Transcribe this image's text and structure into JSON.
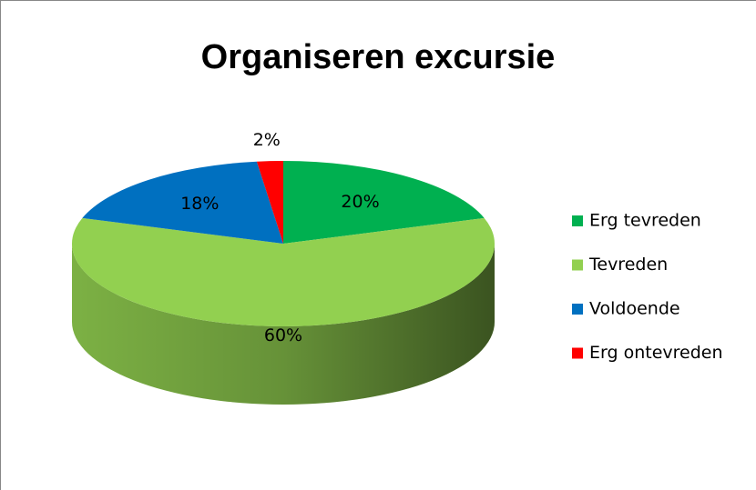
{
  "chart_data": {
    "type": "pie",
    "title": "Organiseren excursie",
    "categories": [
      "Erg tevreden",
      "Tevreden",
      "Voldoende",
      "Erg ontevreden"
    ],
    "values": [
      20,
      60,
      18,
      2
    ],
    "value_labels": [
      "20%",
      "60%",
      "18%",
      "2%"
    ],
    "colors": [
      "#00b050",
      "#92d050",
      "#0070c0",
      "#ff0000"
    ],
    "legend": "right"
  }
}
